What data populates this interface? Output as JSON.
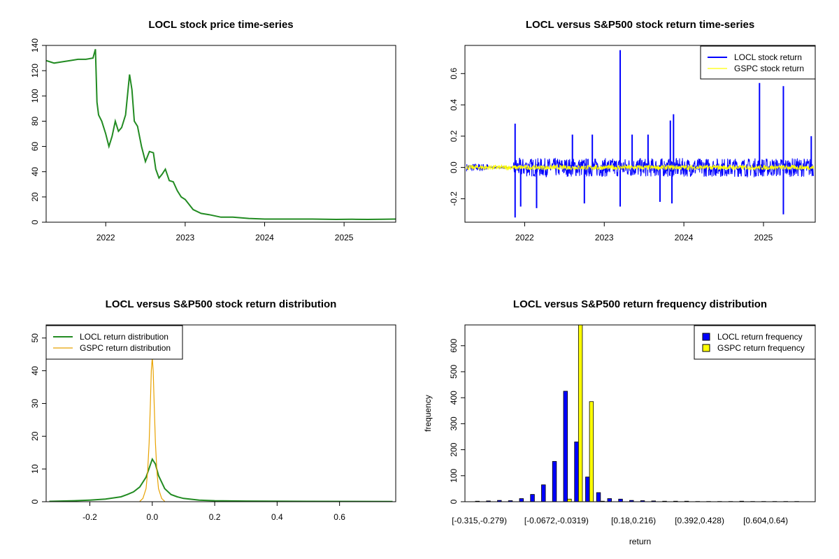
{
  "chart_data": [
    {
      "type": "line",
      "title": "LOCL stock price time-series",
      "xlabel": "",
      "ylabel": "",
      "xlim": [
        2021.25,
        2025.65
      ],
      "ylim": [
        0,
        140
      ],
      "x_ticks": [
        2022,
        2023,
        2024,
        2025
      ],
      "y_ticks": [
        0,
        20,
        40,
        60,
        80,
        100,
        120,
        140
      ],
      "series": [
        {
          "color": "#228B22",
          "x": [
            2021.25,
            2021.3,
            2021.35,
            2021.45,
            2021.55,
            2021.65,
            2021.75,
            2021.84,
            2021.87,
            2021.89,
            2021.91,
            2021.95,
            2022.0,
            2022.04,
            2022.08,
            2022.12,
            2022.16,
            2022.2,
            2022.25,
            2022.3,
            2022.33,
            2022.36,
            2022.4,
            2022.45,
            2022.5,
            2022.55,
            2022.6,
            2022.63,
            2022.67,
            2022.71,
            2022.75,
            2022.8,
            2022.85,
            2022.9,
            2022.95,
            2023.0,
            2023.1,
            2023.2,
            2023.3,
            2023.45,
            2023.6,
            2023.8,
            2024.0,
            2024.3,
            2024.6,
            2024.9,
            2025.1,
            2025.3,
            2025.5,
            2025.65
          ],
          "y": [
            128,
            127,
            126,
            127,
            128,
            129,
            129,
            130,
            137,
            95,
            85,
            80,
            70,
            60,
            68,
            80,
            72,
            75,
            85,
            117,
            105,
            80,
            76,
            60,
            48,
            56,
            55,
            42,
            35,
            38,
            42,
            33,
            32,
            25,
            20,
            18,
            10,
            7,
            6,
            4,
            4,
            3,
            2.5,
            2.5,
            2.5,
            2.2,
            2.3,
            2.2,
            2.4,
            2.5
          ]
        }
      ]
    },
    {
      "type": "line",
      "title": "LOCL versus S&P500 stock return time-series",
      "xlabel": "",
      "ylabel": "",
      "xlim": [
        2021.25,
        2025.65
      ],
      "ylim": [
        -0.35,
        0.78
      ],
      "x_ticks": [
        2022,
        2023,
        2024,
        2025
      ],
      "y_ticks": [
        -0.2,
        0.0,
        0.2,
        0.4,
        0.6
      ],
      "legend_position": "top-right",
      "series": [
        {
          "name": "LOCL stock return",
          "color": "#0000FF",
          "spikes_up": [
            [
              2021.88,
              0.28
            ],
            [
              2022.6,
              0.21
            ],
            [
              2022.85,
              0.21
            ],
            [
              2023.2,
              0.75
            ],
            [
              2023.35,
              0.21
            ],
            [
              2023.55,
              0.21
            ],
            [
              2023.83,
              0.3
            ],
            [
              2023.87,
              0.34
            ],
            [
              2024.95,
              0.54
            ],
            [
              2025.25,
              0.52
            ],
            [
              2025.6,
              0.2
            ]
          ],
          "spikes_down": [
            [
              2021.88,
              -0.32
            ],
            [
              2021.95,
              -0.25
            ],
            [
              2022.15,
              -0.26
            ],
            [
              2022.75,
              -0.23
            ],
            [
              2023.2,
              -0.25
            ],
            [
              2023.7,
              -0.22
            ],
            [
              2023.85,
              -0.23
            ],
            [
              2025.25,
              -0.3
            ]
          ]
        },
        {
          "name": "GSPC stock return",
          "color": "#FFFF00"
        }
      ]
    },
    {
      "type": "line",
      "title": "LOCL versus S&P500 stock return distribution",
      "xlabel": "",
      "ylabel": "",
      "xlim": [
        -0.34,
        0.78
      ],
      "ylim": [
        0,
        54
      ],
      "x_ticks": [
        -0.2,
        0.0,
        0.2,
        0.4,
        0.6
      ],
      "y_ticks": [
        0,
        10,
        20,
        30,
        40,
        50
      ],
      "legend_position": "top-left",
      "series": [
        {
          "name": "LOCL return distribution",
          "color": "#228B22",
          "x": [
            -0.33,
            -0.25,
            -0.2,
            -0.15,
            -0.1,
            -0.08,
            -0.06,
            -0.04,
            -0.02,
            0.0,
            0.01,
            0.02,
            0.04,
            0.06,
            0.08,
            0.1,
            0.15,
            0.2,
            0.3,
            0.5,
            0.77
          ],
          "y": [
            0.1,
            0.3,
            0.5,
            0.8,
            1.5,
            2.2,
            3.0,
            4.5,
            7.5,
            13.0,
            11.5,
            8.0,
            4.0,
            2.2,
            1.5,
            1.0,
            0.5,
            0.3,
            0.2,
            0.1,
            0.05
          ]
        },
        {
          "name": "GSPC return distribution",
          "color": "#E8A200",
          "x": [
            -0.04,
            -0.03,
            -0.02,
            -0.015,
            -0.01,
            -0.006,
            -0.003,
            0.0,
            0.003,
            0.006,
            0.01,
            0.015,
            0.02,
            0.03,
            0.04
          ],
          "y": [
            0.1,
            1.0,
            4.0,
            9.0,
            18.0,
            30.0,
            40.0,
            44.0,
            40.0,
            30.0,
            18.0,
            9.0,
            4.0,
            1.0,
            0.1
          ]
        }
      ]
    },
    {
      "type": "bar",
      "title": "LOCL versus S&P500 return frequency distribution",
      "xlabel": "return",
      "ylabel": "frequency",
      "ylim": [
        0,
        680
      ],
      "y_ticks": [
        0,
        100,
        200,
        300,
        400,
        500,
        600
      ],
      "x_tick_labels": [
        "[-0.315,-0.279)",
        "[-0.0672,-0.0319)",
        "[0.18,0.216)",
        "[0.392,0.428)",
        "[0.604,0.64)"
      ],
      "x_tick_bins": [
        0,
        7,
        14,
        20,
        26
      ],
      "bin_count": 30,
      "legend_position": "top-right",
      "series": [
        {
          "name": "LOCL return frequency",
          "color": "#0000FF",
          "values": [
            2,
            3,
            5,
            4,
            12,
            28,
            65,
            155,
            425,
            230,
            95,
            35,
            12,
            10,
            5,
            4,
            3,
            2,
            2,
            2,
            1,
            1,
            1,
            1,
            2,
            1,
            1,
            1,
            1,
            1
          ]
        },
        {
          "name": "GSPC return frequency",
          "color": "#FFFF00",
          "values": [
            0,
            0,
            0,
            0,
            0,
            0,
            0,
            0,
            10,
            690,
            385,
            2,
            0,
            0,
            0,
            0,
            0,
            0,
            0,
            0,
            0,
            0,
            0,
            0,
            0,
            0,
            0,
            0,
            0,
            0
          ]
        }
      ]
    }
  ]
}
